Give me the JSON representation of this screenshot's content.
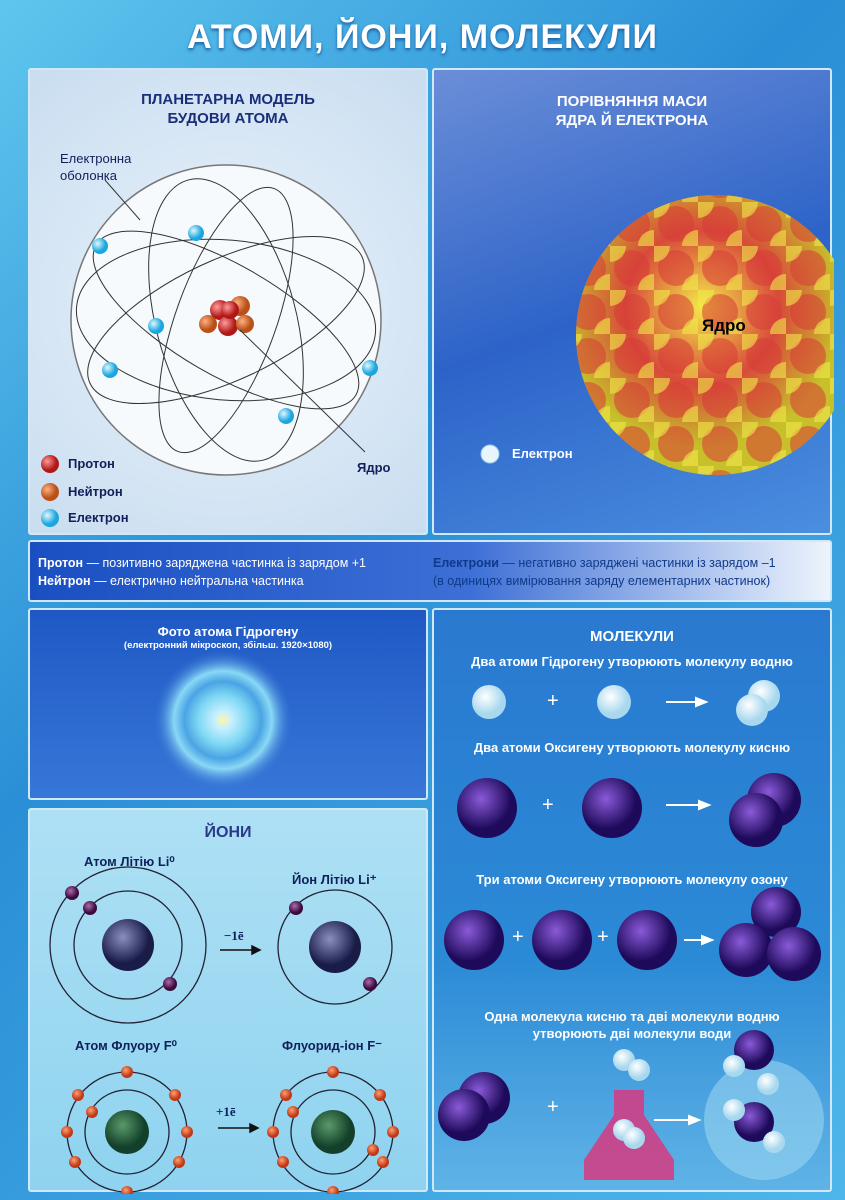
{
  "title": "АТОМИ, ЙОНИ, МОЛЕКУЛИ",
  "atom_model": {
    "title_line1": "ПЛАНЕТАРНА МОДЕЛЬ",
    "title_line2": "БУДОВИ АТОМА",
    "shell_label_line1": "Електронна",
    "shell_label_line2": "оболонка",
    "nucleus_label": "Ядро",
    "legend": [
      {
        "label": "Протон",
        "color": "#d42a2a"
      },
      {
        "label": "Нейтрон",
        "color": "#d46a2a"
      },
      {
        "label": "Електрон",
        "color": "#36b8e8"
      }
    ]
  },
  "mass_comparison": {
    "title_line1": "ПОРІВНЯННЯ МАСИ",
    "title_line2": "ЯДРА Й ЕЛЕКТРОНА",
    "nucleus_label": "Ядро",
    "electron_label": "Електрон"
  },
  "info": {
    "proton_term": "Протон",
    "proton_def": " — позитивно заряджена частинка із зарядом +1",
    "neutron_term": "Нейтрон",
    "neutron_def": " — електрично нейтральна частинка",
    "electron_term": "Електрони",
    "electron_def": " — негативно заряджені частинки із зарядом –1",
    "note": "(в одиницях вимірювання заряду елементарних частинок)"
  },
  "photo": {
    "title": "Фото атома Гідрогену",
    "subtitle": "(електронний мікроскоп, збільш. 1920×1080)"
  },
  "ions": {
    "title": "ЙОНИ",
    "li_atom": "Атом Літію Li⁰",
    "li_ion": "Йон Літію Li⁺",
    "li_arrow": "−1ē",
    "f_atom": "Атом Флуору F⁰",
    "f_ion": "Флуорид-іон F⁻",
    "f_arrow": "+1ē"
  },
  "molecules": {
    "title": "МОЛЕКУЛИ",
    "hydrogen": "Два атоми Гідрогену утворюють молекулу водню",
    "oxygen": "Два атоми Оксигену утворюють молекулу кисню",
    "ozone": "Три атоми Оксигену утворюють молекулу озону",
    "water_line1": "Одна молекула кисню та дві молекули водню",
    "water_line2": "утворюють дві молекули води",
    "plus": "+"
  }
}
